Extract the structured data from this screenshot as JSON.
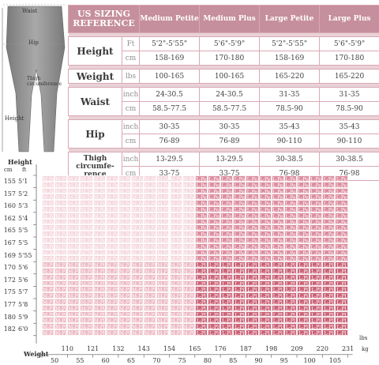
{
  "illustration": {
    "labels": {
      "waist": "Waist",
      "hip": "Hip",
      "thigh": "Thigh circumference",
      "height": "Height"
    }
  },
  "reference": {
    "title_line1": "US SIZING",
    "title_line2": "REFERENCE",
    "sizes": [
      "Medium Petite",
      "Medium Plus",
      "Large Petite",
      "Large Plus"
    ],
    "rows": [
      {
        "metric": "Height",
        "units": [
          {
            "unit": "Ft",
            "values": [
              "5'2\"-5'55\"",
              "5'6\"-5'9\"",
              "5'2\"-5'55\"",
              "5'6\"-5'9\""
            ]
          },
          {
            "unit": "cm",
            "values": [
              "158-169",
              "170-180",
              "158-169",
              "170-180"
            ]
          }
        ]
      },
      {
        "metric": "Weight",
        "units": [
          {
            "unit": "lbs",
            "values": [
              "100-165",
              "100-165",
              "165-220",
              "165-220"
            ]
          }
        ]
      },
      {
        "metric": "Waist",
        "units": [
          {
            "unit": "inch",
            "values": [
              "24-30.5",
              "24-30.5",
              "31-35",
              "31-35"
            ]
          },
          {
            "unit": "cm",
            "values": [
              "58.5-77.5",
              "58.5-77.5",
              "78.5-90",
              "78.5-90"
            ]
          }
        ]
      },
      {
        "metric": "Hip",
        "units": [
          {
            "unit": "inch",
            "values": [
              "30-35",
              "30-35",
              "35-43",
              "35-43"
            ]
          },
          {
            "unit": "cm",
            "values": [
              "76-89",
              "76-89",
              "90-110",
              "90-110"
            ]
          }
        ]
      },
      {
        "metric": "Thigh circumfe-rence",
        "units": [
          {
            "unit": "inch",
            "values": [
              "13-29.5",
              "13-29.5",
              "30-38.5",
              "30-38.5"
            ]
          },
          {
            "unit": "cm",
            "values": [
              "33-75",
              "33-75",
              "76-98",
              "76-98"
            ]
          }
        ]
      }
    ]
  },
  "grid": {
    "height_title": "Height",
    "cm_unit": "cm",
    "ft_unit": "ft",
    "weight_title": "Weight",
    "lbs_unit": "lbs",
    "kg_unit": "kg",
    "heights_cm": [
      "155",
      "157",
      "160",
      "162",
      "165",
      "167",
      "169",
      "170",
      "172",
      "175",
      "177",
      "180",
      "182"
    ],
    "heights_ft": [
      "5'1",
      "5'2",
      "5'3",
      "5'4",
      "5'5",
      "5'5",
      "5'55",
      "5'6",
      "5'6",
      "5'7",
      "5'8",
      "5'9",
      "6'0"
    ],
    "weights_lbs": [
      "110",
      "121",
      "132",
      "143",
      "154",
      "165",
      "176",
      "187",
      "198",
      "209",
      "220",
      "231"
    ],
    "weights_kg": [
      "50",
      "55",
      "60",
      "65",
      "70",
      "75",
      "80",
      "85",
      "90",
      "95",
      "100",
      "105"
    ],
    "codes": {
      "MPe": "M-Pe",
      "MPl": "M-Pl",
      "LPe": "L-Pe",
      "LPl": "L-Pl"
    },
    "colors": {
      "MPe": "#f4d7dd",
      "MPl": "#ecb8c3",
      "LPe": "#dc8e9f",
      "LPl": "#cb6478",
      "title_bg": "#c68f9d"
    }
  }
}
